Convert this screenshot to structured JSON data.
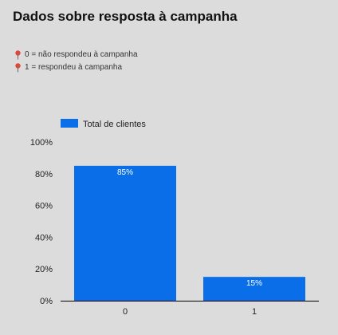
{
  "page": {
    "title": "Dados sobre resposta à campanha",
    "notes": [
      {
        "icon": "pin-icon",
        "text": "0 = não respondeu à campanha"
      },
      {
        "icon": "pin-icon",
        "text": "1 = respondeu à campanha"
      }
    ]
  },
  "colors": {
    "background": "#dcdcdc",
    "bar": "#0a6ee8",
    "pin": "#d94a3a",
    "axis": "#000000"
  },
  "chart_data": {
    "type": "bar",
    "title": "",
    "categories": [
      "0",
      "1"
    ],
    "series": [
      {
        "name": "Total de clientes",
        "values": [
          85,
          15
        ]
      }
    ],
    "data_labels": [
      "85%",
      "15%"
    ],
    "xlabel": "",
    "ylabel": "",
    "ylim": [
      0,
      100
    ],
    "yticks": [
      0,
      20,
      40,
      60,
      80,
      100
    ],
    "ytick_labels": [
      "0%",
      "20%",
      "40%",
      "60%",
      "80%",
      "100%"
    ],
    "grid": false,
    "legend_position": "top-left"
  }
}
